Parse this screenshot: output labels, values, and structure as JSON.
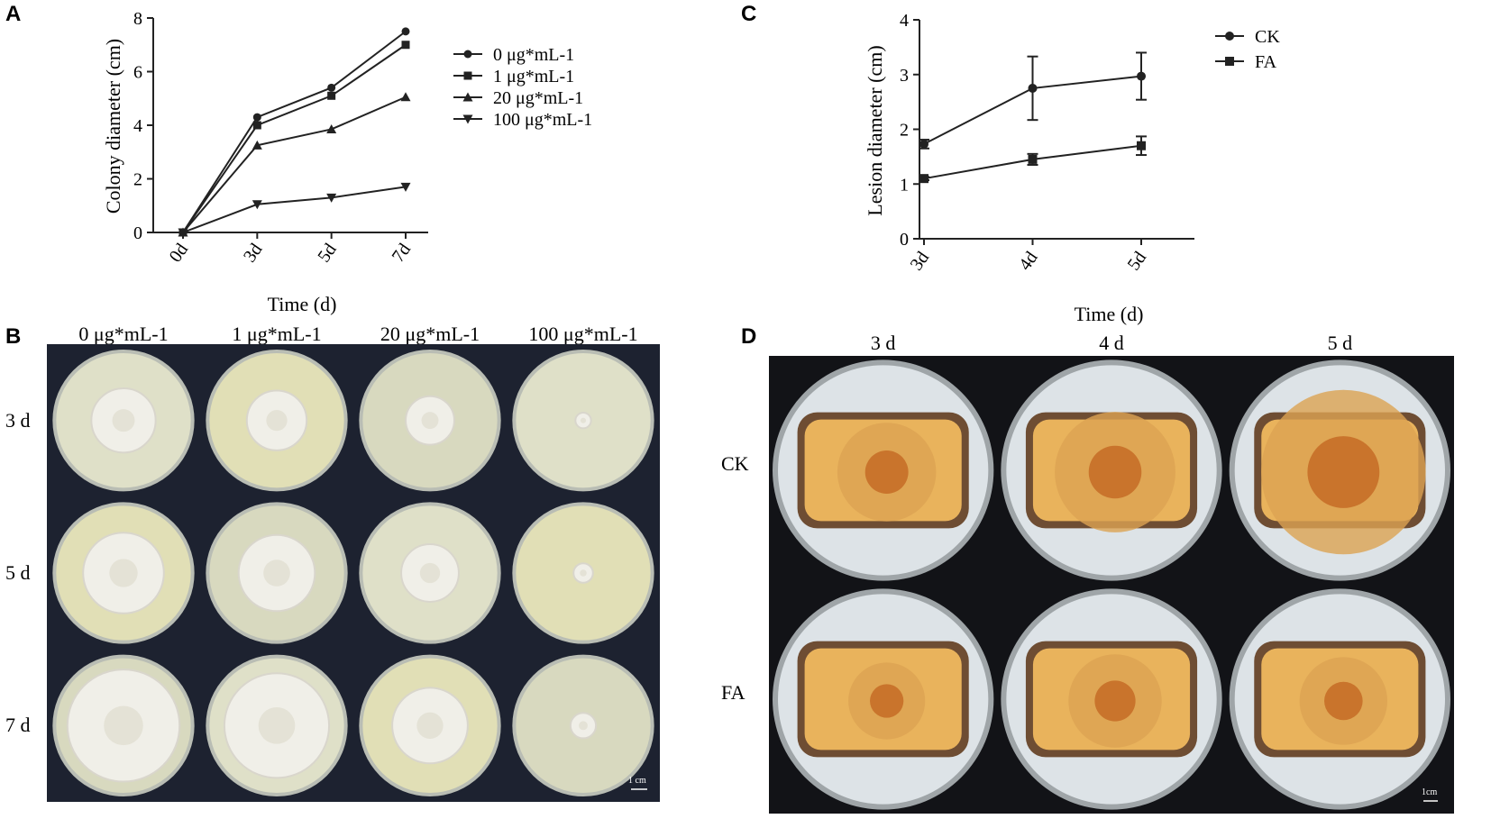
{
  "panels": {
    "A": "A",
    "B": "B",
    "C": "C",
    "D": "D"
  },
  "chart_data": [
    {
      "type": "line",
      "panel": "A",
      "title": "",
      "xlabel": "Time (d)",
      "ylabel": "Colony diameter (cm)",
      "categories": [
        "0d",
        "3d",
        "5d",
        "7d"
      ],
      "ylim": [
        0,
        8
      ],
      "yticks": [
        "0",
        "2",
        "4",
        "6",
        "8"
      ],
      "legend_position": "right",
      "series": [
        {
          "name": "0 μg*mL-1",
          "marker": "circle",
          "values": [
            0,
            4.3,
            5.4,
            7.5
          ]
        },
        {
          "name": "1 μg*mL-1",
          "marker": "square",
          "values": [
            0,
            4.0,
            5.1,
            7.0
          ]
        },
        {
          "name": "20 μg*mL-1",
          "marker": "triangle-up",
          "values": [
            0,
            3.25,
            3.85,
            5.05
          ]
        },
        {
          "name": "100 μg*mL-1",
          "marker": "triangle-down",
          "values": [
            0,
            1.05,
            1.3,
            1.7
          ]
        }
      ]
    },
    {
      "type": "line",
      "panel": "C",
      "title": "",
      "xlabel": "Time (d)",
      "ylabel": "Lesion diameter (cm)",
      "categories": [
        "3d",
        "4d",
        "5d"
      ],
      "ylim": [
        0,
        4
      ],
      "yticks": [
        "0",
        "1",
        "2",
        "3",
        "4"
      ],
      "legend_position": "top-right",
      "series": [
        {
          "name": "CK",
          "marker": "circle",
          "values": [
            1.73,
            2.75,
            2.97
          ],
          "errors": [
            0.08,
            0.58,
            0.43
          ]
        },
        {
          "name": "FA",
          "marker": "square",
          "values": [
            1.1,
            1.45,
            1.7
          ],
          "errors": [
            0.03,
            0.1,
            0.17
          ]
        }
      ]
    }
  ],
  "panelB": {
    "columns": [
      "0 μg*mL-1",
      "1 μg*mL-1",
      "20 μg*mL-1",
      "100 μg*mL-1"
    ],
    "rows": [
      "3 d",
      "5 d",
      "7 d"
    ],
    "scale_bar": "1 cm",
    "colony_diameters_cm": [
      [
        4.3,
        4.0,
        3.25,
        1.05
      ],
      [
        5.4,
        5.1,
        3.85,
        1.3
      ],
      [
        7.5,
        7.0,
        5.05,
        1.7
      ]
    ]
  },
  "panelD": {
    "columns": [
      "3 d",
      "4 d",
      "5 d"
    ],
    "rows": [
      "CK",
      "FA"
    ],
    "scale_bar": "1cm"
  },
  "colors": {
    "line": "#222222",
    "photo_bg": "#1d2230",
    "agar": "#e2e3c9",
    "mycelium": "#f0efe8",
    "tuber": "#e9b35c",
    "lesion": "#c9742c"
  }
}
